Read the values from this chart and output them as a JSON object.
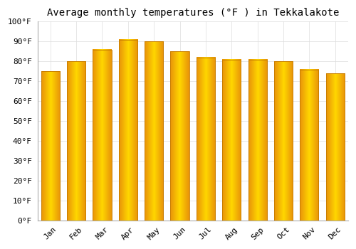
{
  "title": "Average monthly temperatures (°F ) in Tekkalakote",
  "months": [
    "Jan",
    "Feb",
    "Mar",
    "Apr",
    "May",
    "Jun",
    "Jul",
    "Aug",
    "Sep",
    "Oct",
    "Nov",
    "Dec"
  ],
  "values": [
    75,
    80,
    86,
    91,
    90,
    85,
    82,
    81,
    81,
    80,
    76,
    74
  ],
  "bar_color_center": "#FFD700",
  "bar_color_edge": "#E8920A",
  "ylim": [
    0,
    100
  ],
  "yticks": [
    0,
    10,
    20,
    30,
    40,
    50,
    60,
    70,
    80,
    90,
    100
  ],
  "ytick_labels": [
    "0°F",
    "10°F",
    "20°F",
    "30°F",
    "40°F",
    "50°F",
    "60°F",
    "70°F",
    "80°F",
    "90°F",
    "100°F"
  ],
  "title_fontsize": 10,
  "tick_fontsize": 8,
  "background_color": "#ffffff",
  "grid_color": "#dddddd",
  "bar_width": 0.72
}
